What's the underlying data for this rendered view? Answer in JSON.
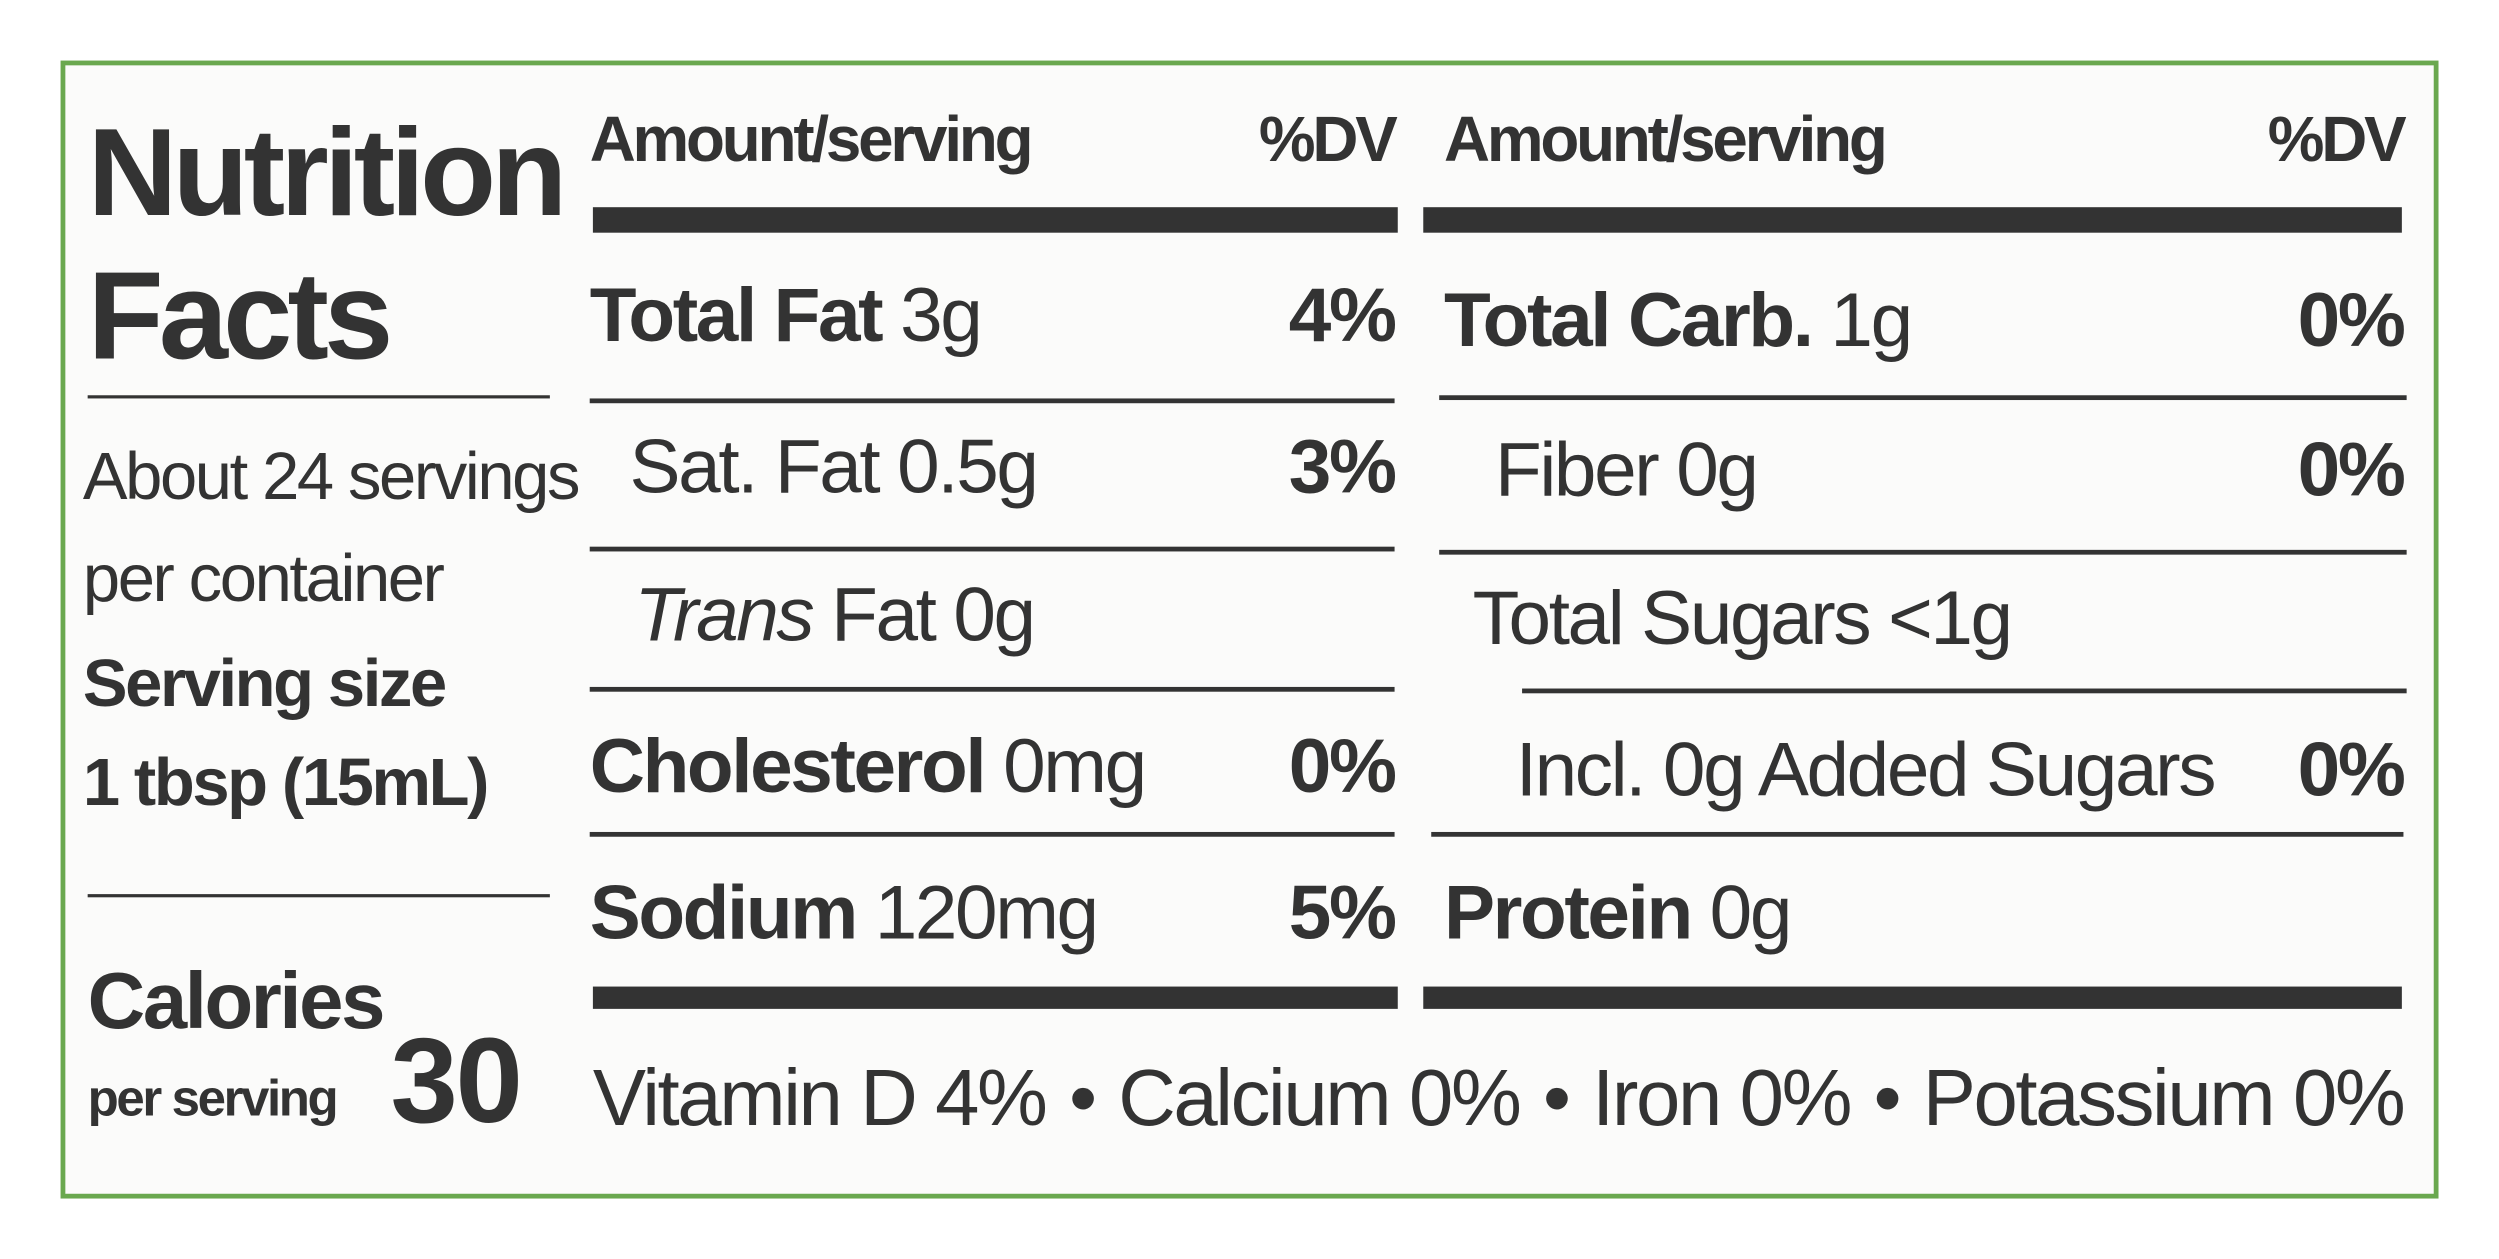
{
  "panel": {
    "title_line1": "Nutrition",
    "title_line2": "Facts",
    "servings_line1": "About 24 servings",
    "servings_line2": "per container",
    "serving_size_label": "Serving size",
    "serving_size": "1 tbsp (15mL)",
    "calories_label": "Calories",
    "calories_sub": "per serving",
    "calories": 30
  },
  "left_column": {
    "header": {
      "amount": "Amount/serving",
      "dv": "%DV"
    },
    "rows": [
      {
        "name": "Total Fat",
        "amount": "3g",
        "dv": "4%"
      },
      {
        "name": "Sat. Fat",
        "amount": "0.5g",
        "dv": "3%"
      },
      {
        "italic": "Trans",
        "name": "Fat",
        "amount": "0g"
      },
      {
        "name": "Cholesterol",
        "amount": "0mg",
        "dv": "0%"
      },
      {
        "name": "Sodium",
        "amount": "120mg",
        "dv": "5%"
      }
    ]
  },
  "right_column": {
    "header": {
      "amount": "Amount/serving",
      "dv": "%DV"
    },
    "rows": [
      {
        "name": "Total Carb.",
        "amount": "1g",
        "dv": "0%"
      },
      {
        "name": "Fiber",
        "amount": "0g",
        "dv": "0%"
      },
      {
        "name": "Total Sugars",
        "amount": "<1g"
      },
      {
        "name": "Incl. 0g Added Sugars",
        "dv": "0%"
      },
      {
        "name": "Protein",
        "amount": "0g"
      }
    ]
  },
  "footer": {
    "items": [
      "Vitamin D 4%",
      "Calcium 0%",
      "Iron 0%",
      "Potassium 0%"
    ]
  }
}
